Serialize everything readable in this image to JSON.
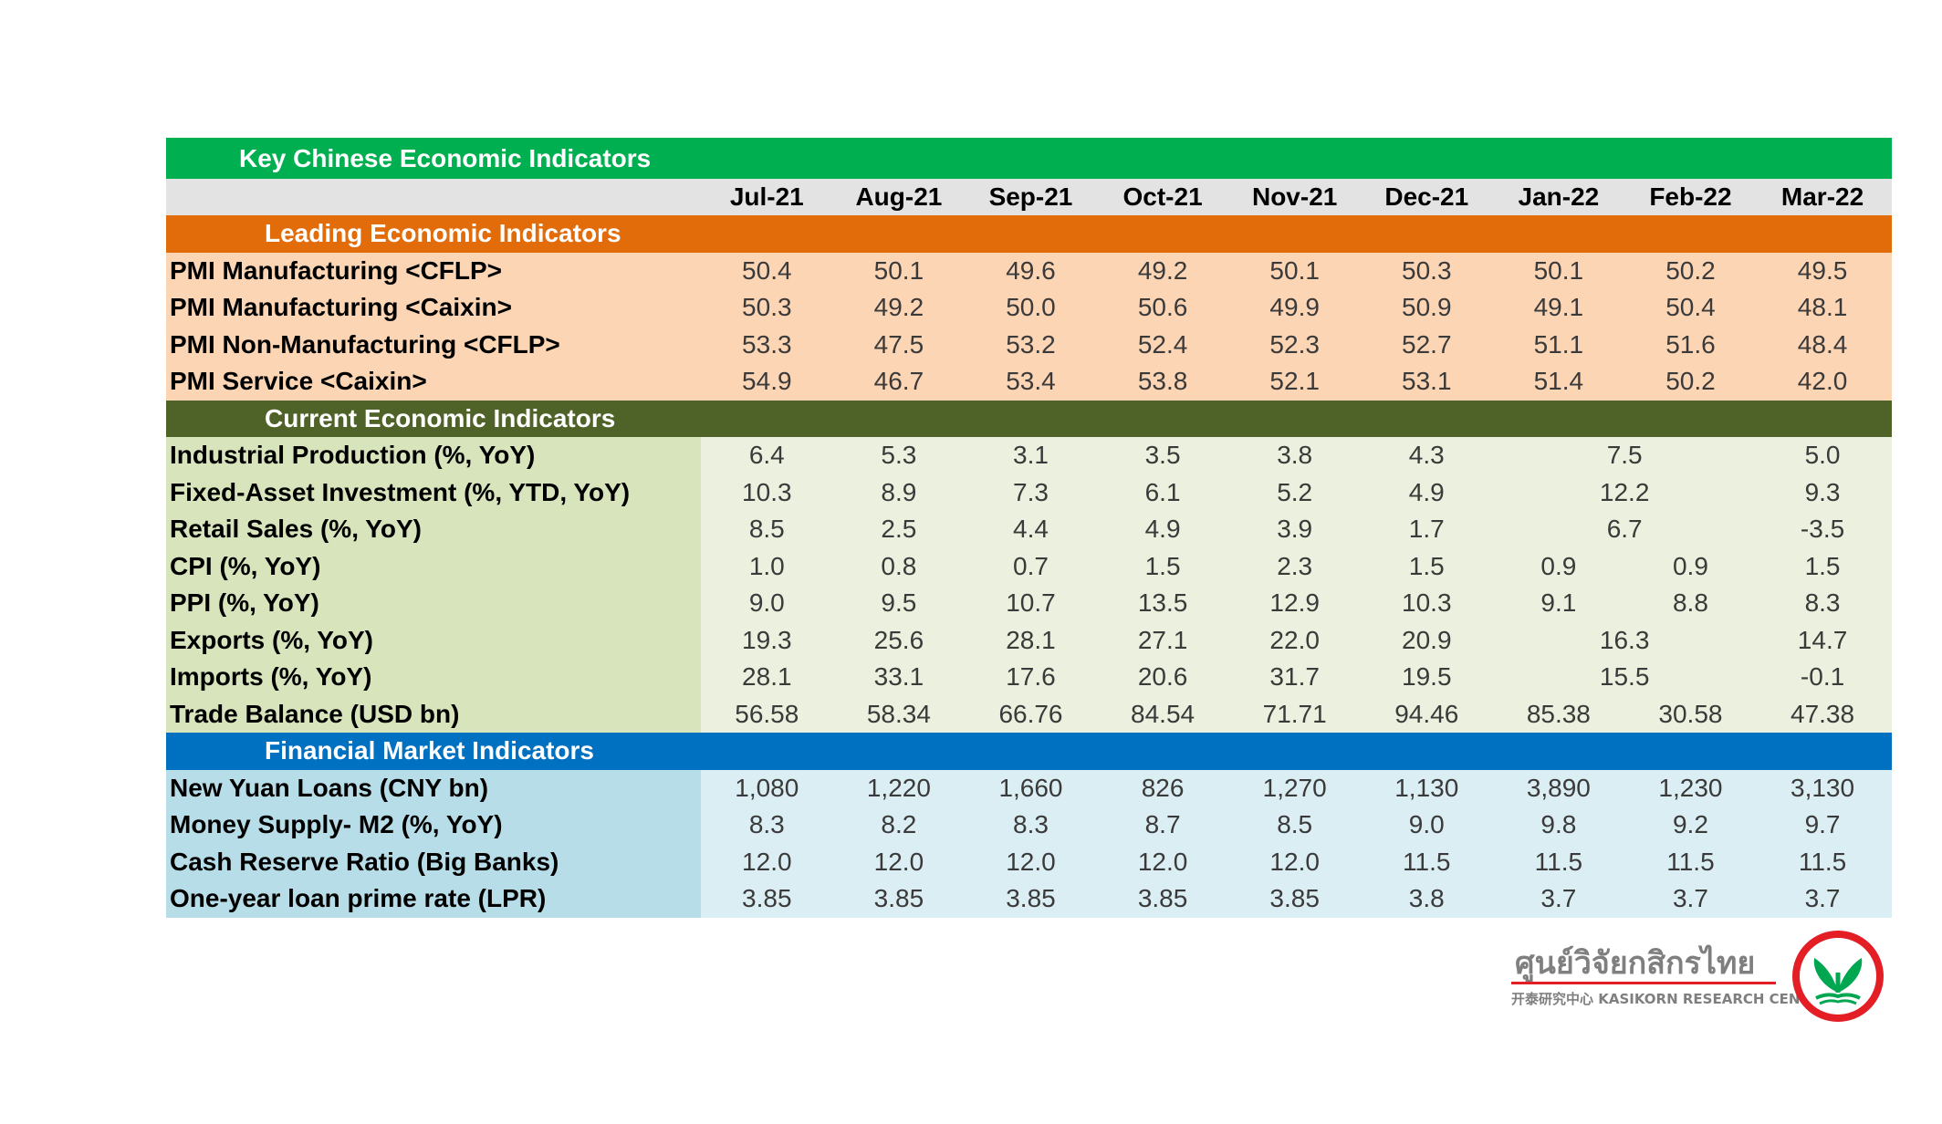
{
  "title": "Key Chinese Economic Indicators",
  "months": [
    "Jul-21",
    "Aug-21",
    "Sep-21",
    "Oct-21",
    "Nov-21",
    "Dec-21",
    "Jan-22",
    "Feb-22",
    "Mar-22"
  ],
  "sections": [
    {
      "title": "Leading Economic Indicators",
      "rows": [
        {
          "label": "PMI Manufacturing <CFLP>",
          "values": [
            "50.4",
            "50.1",
            "49.6",
            "49.2",
            "50.1",
            "50.3",
            "50.1",
            "50.2",
            "49.5"
          ]
        },
        {
          "label": "PMI Manufacturing <Caixin>",
          "values": [
            "50.3",
            "49.2",
            "50.0",
            "50.6",
            "49.9",
            "50.9",
            "49.1",
            "50.4",
            "48.1"
          ]
        },
        {
          "label": "PMI Non-Manufacturing <CFLP>",
          "values": [
            "53.3",
            "47.5",
            "53.2",
            "52.4",
            "52.3",
            "52.7",
            "51.1",
            "51.6",
            "48.4"
          ]
        },
        {
          "label": "PMI Service <Caixin>",
          "values": [
            "54.9",
            "46.7",
            "53.4",
            "53.8",
            "52.1",
            "53.1",
            "51.4",
            "50.2",
            "42.0"
          ]
        }
      ]
    },
    {
      "title": "Current Economic Indicators",
      "rows": [
        {
          "label": "Industrial Production (%, YoY)",
          "values": [
            "6.4",
            "5.3",
            "3.1",
            "3.5",
            "3.8",
            "4.3",
            "7.5",
            "5.0"
          ]
        },
        {
          "label": "Fixed-Asset Investment (%, YTD, YoY)",
          "values": [
            "10.3",
            "8.9",
            "7.3",
            "6.1",
            "5.2",
            "4.9",
            "12.2",
            "9.3"
          ]
        },
        {
          "label": "Retail Sales (%, YoY)",
          "values": [
            "8.5",
            "2.5",
            "4.4",
            "4.9",
            "3.9",
            "1.7",
            "6.7",
            "-3.5"
          ]
        },
        {
          "label": "CPI (%, YoY)",
          "values": [
            "1.0",
            "0.8",
            "0.7",
            "1.5",
            "2.3",
            "1.5",
            "0.9",
            "0.9",
            "1.5"
          ]
        },
        {
          "label": "PPI (%, YoY)",
          "values": [
            "9.0",
            "9.5",
            "10.7",
            "13.5",
            "12.9",
            "10.3",
            "9.1",
            "8.8",
            "8.3"
          ]
        },
        {
          "label": "Exports (%, YoY)",
          "values": [
            "19.3",
            "25.6",
            "28.1",
            "27.1",
            "22.0",
            "20.9",
            "16.3",
            "14.7"
          ]
        },
        {
          "label": "Imports (%, YoY)",
          "values": [
            "28.1",
            "33.1",
            "17.6",
            "20.6",
            "31.7",
            "19.5",
            "15.5",
            "-0.1"
          ]
        },
        {
          "label": "Trade Balance (USD bn)",
          "values": [
            "56.58",
            "58.34",
            "66.76",
            "84.54",
            "71.71",
            "94.46",
            "85.38",
            "30.58",
            "47.38"
          ]
        }
      ]
    },
    {
      "title": "Financial Market Indicators",
      "rows": [
        {
          "label": "New Yuan Loans (CNY bn)",
          "values": [
            "1,080",
            "1,220",
            "1,660",
            "826",
            "1,270",
            "1,130",
            "3,890",
            "1,230",
            "3,130"
          ]
        },
        {
          "label": "Money Supply- M2 (%, YoY)",
          "values": [
            "8.3",
            "8.2",
            "8.3",
            "8.7",
            "8.5",
            "9.0",
            "9.8",
            "9.2",
            "9.7"
          ]
        },
        {
          "label": "Cash Reserve Ratio (Big Banks)",
          "values": [
            "12.0",
            "12.0",
            "12.0",
            "12.0",
            "12.0",
            "11.5",
            "11.5",
            "11.5",
            "11.5"
          ]
        },
        {
          "label": "One-year loan prime rate (LPR)",
          "values": [
            "3.85",
            "3.85",
            "3.85",
            "3.85",
            "3.85",
            "3.8",
            "3.7",
            "3.7",
            "3.7"
          ]
        }
      ]
    }
  ],
  "logo": {
    "thai": "ศูนย์วิจัยกสิกรไทย",
    "english": "开泰研究中心 KASIKORN RESEARCH CENTER",
    "colors": {
      "red": "#e31e24",
      "green": "#00a650",
      "gray": "#7f7f7f"
    }
  },
  "colors": {
    "title_bar": "#00b050",
    "leading_header": "#e36c0a",
    "leading_rows": "#fcd5b5",
    "current_header": "#4f6228",
    "current_rows": "#ebf1de",
    "financial_header": "#0070c0",
    "financial_rows": "#dbeef3"
  }
}
